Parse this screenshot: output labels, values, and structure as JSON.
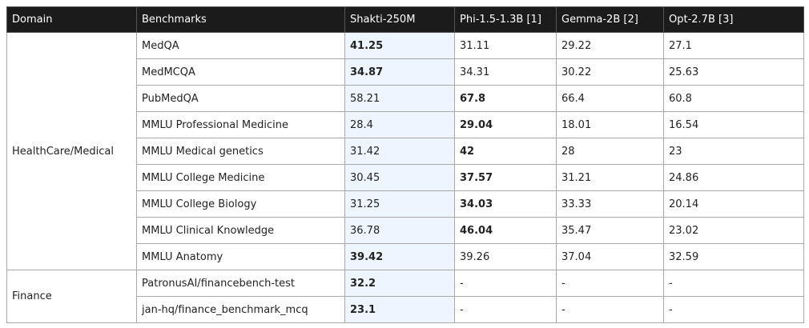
{
  "header": {
    "columns": [
      "Domain",
      "Benchmarks",
      "Shakti-250M",
      "Phi-1.5-1.3B [1]",
      "Gemma-2B [2]",
      "Opt-2.7B [3]"
    ]
  },
  "table": {
    "groups": [
      {
        "domain": "HealthCare/Medical",
        "rows": [
          {
            "benchmark": "MedQA",
            "values": [
              "41.25",
              "31.11",
              "29.22",
              "27.1"
            ],
            "bold": 0
          },
          {
            "benchmark": "MedMCQA",
            "values": [
              "34.87",
              "34.31",
              "30.22",
              "25.63"
            ],
            "bold": 0
          },
          {
            "benchmark": "PubMedQA",
            "values": [
              "58.21",
              "67.8",
              "66.4",
              "60.8"
            ],
            "bold": 1
          },
          {
            "benchmark": "MMLU Professional Medicine",
            "values": [
              "28.4",
              "29.04",
              "18.01",
              "16.54"
            ],
            "bold": 1
          },
          {
            "benchmark": "MMLU Medical genetics",
            "values": [
              "31.42",
              "42",
              "28",
              "23"
            ],
            "bold": 1
          },
          {
            "benchmark": "MMLU College Medicine",
            "values": [
              "30.45",
              "37.57",
              "31.21",
              "24.86"
            ],
            "bold": 1
          },
          {
            "benchmark": "MMLU College Biology",
            "values": [
              "31.25",
              "34.03",
              "33.33",
              "20.14"
            ],
            "bold": 1
          },
          {
            "benchmark": "MMLU Clinical Knowledge",
            "values": [
              "36.78",
              "46.04",
              "35.47",
              "23.02"
            ],
            "bold": 1
          },
          {
            "benchmark": "MMLU Anatomy",
            "values": [
              "39.42",
              "39.26",
              "37.04",
              "32.59"
            ],
            "bold": 0
          }
        ]
      },
      {
        "domain": "Finance",
        "rows": [
          {
            "benchmark": "PatronusAI/financebench-test",
            "values": [
              "32.2",
              "-",
              "-",
              "-"
            ],
            "bold": 0
          },
          {
            "benchmark": "jan-hq/finance_benchmark_mcq",
            "values": [
              "23.1",
              "-",
              "-",
              "-"
            ],
            "bold": 0
          }
        ]
      }
    ]
  }
}
